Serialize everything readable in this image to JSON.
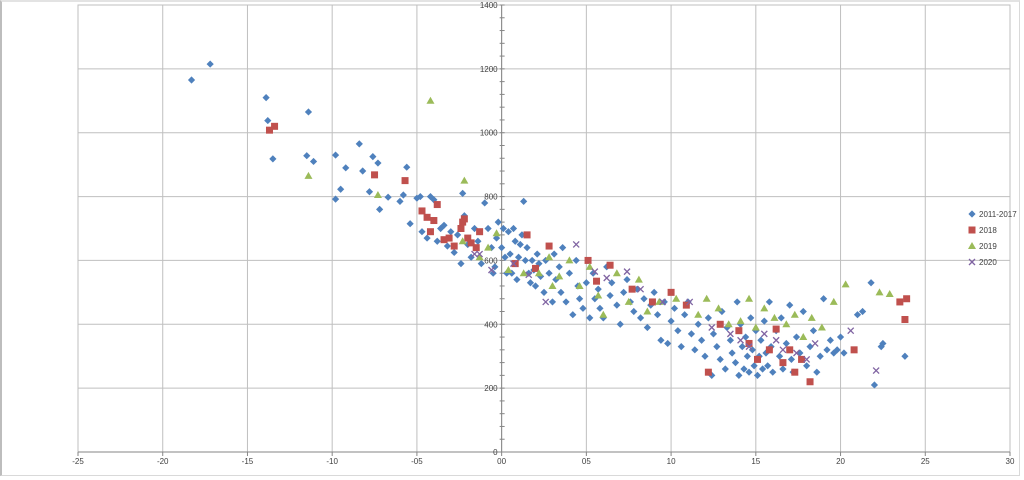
{
  "chart_data": {
    "type": "scatter",
    "title": "",
    "xlabel": "",
    "ylabel": "",
    "xlim": [
      -25,
      30
    ],
    "ylim": [
      0,
      1400
    ],
    "grid": true,
    "legend_position": "right",
    "x_tick_labels": [
      "-25",
      "-20",
      "-15",
      "-10",
      "-05",
      "00",
      "05",
      "10",
      "15",
      "20",
      "25",
      "30"
    ],
    "x_ticks": [
      -25,
      -20,
      -15,
      -10,
      -5,
      0,
      5,
      10,
      15,
      20,
      25,
      30
    ],
    "y_tick_labels": [
      "0",
      "200",
      "400",
      "600",
      "800",
      "1000",
      "1200",
      "1400"
    ],
    "y_ticks": [
      0,
      200,
      400,
      600,
      800,
      1000,
      1200,
      1400
    ],
    "series": [
      {
        "name": "2011-2017",
        "marker": "diamond",
        "color": "#4f81bd",
        "points": [
          [
            -18.3,
            1165
          ],
          [
            -17.2,
            1215
          ],
          [
            -13.9,
            1110
          ],
          [
            -13.8,
            1038
          ],
          [
            -13.5,
            918
          ],
          [
            -11.4,
            1065
          ],
          [
            -11.5,
            928
          ],
          [
            -11.1,
            910
          ],
          [
            -9.8,
            930
          ],
          [
            -9.8,
            792
          ],
          [
            -9.5,
            823
          ],
          [
            -9.2,
            890
          ],
          [
            -8.4,
            965
          ],
          [
            -8.2,
            880
          ],
          [
            -7.8,
            815
          ],
          [
            -7.6,
            925
          ],
          [
            -7.3,
            905
          ],
          [
            -7.2,
            760
          ],
          [
            -6.7,
            798
          ],
          [
            -6.0,
            785
          ],
          [
            -5.8,
            805
          ],
          [
            -5.6,
            892
          ],
          [
            -5.4,
            715
          ],
          [
            -5.0,
            795
          ],
          [
            -4.8,
            800
          ],
          [
            -4.7,
            690
          ],
          [
            -4.4,
            670
          ],
          [
            -4.2,
            800
          ],
          [
            -4.0,
            790
          ],
          [
            -3.8,
            660
          ],
          [
            -3.6,
            700
          ],
          [
            -3.4,
            710
          ],
          [
            -3.2,
            645
          ],
          [
            -3.0,
            690
          ],
          [
            -2.8,
            625
          ],
          [
            -2.6,
            680
          ],
          [
            -2.4,
            590
          ],
          [
            -2.3,
            810
          ],
          [
            -2.2,
            740
          ],
          [
            -2.0,
            650
          ],
          [
            -1.8,
            610
          ],
          [
            -1.6,
            700
          ],
          [
            -1.4,
            660
          ],
          [
            -1.2,
            590
          ],
          [
            -1.0,
            780
          ],
          [
            -0.8,
            700
          ],
          [
            -0.6,
            640
          ],
          [
            -0.5,
            560
          ],
          [
            -0.4,
            580
          ],
          [
            -0.3,
            670
          ],
          [
            -0.2,
            720
          ],
          [
            0.0,
            640
          ],
          [
            0.1,
            700
          ],
          [
            0.2,
            610
          ],
          [
            0.3,
            560
          ],
          [
            0.4,
            690
          ],
          [
            0.5,
            620
          ],
          [
            0.6,
            560
          ],
          [
            0.7,
            700
          ],
          [
            0.8,
            660
          ],
          [
            0.9,
            540
          ],
          [
            1.0,
            610
          ],
          [
            1.1,
            650
          ],
          [
            1.2,
            680
          ],
          [
            1.3,
            785
          ],
          [
            1.4,
            600
          ],
          [
            1.5,
            640
          ],
          [
            1.6,
            560
          ],
          [
            1.7,
            530
          ],
          [
            1.8,
            600
          ],
          [
            1.9,
            570
          ],
          [
            2.0,
            520
          ],
          [
            2.1,
            620
          ],
          [
            2.2,
            590
          ],
          [
            2.3,
            550
          ],
          [
            2.5,
            500
          ],
          [
            2.6,
            600
          ],
          [
            2.8,
            560
          ],
          [
            3.0,
            470
          ],
          [
            3.1,
            620
          ],
          [
            3.2,
            540
          ],
          [
            3.4,
            580
          ],
          [
            3.5,
            500
          ],
          [
            3.6,
            640
          ],
          [
            3.8,
            470
          ],
          [
            4.0,
            560
          ],
          [
            4.2,
            430
          ],
          [
            4.4,
            600
          ],
          [
            4.5,
            520
          ],
          [
            4.6,
            480
          ],
          [
            4.8,
            450
          ],
          [
            5.0,
            530
          ],
          [
            5.2,
            420
          ],
          [
            5.4,
            560
          ],
          [
            5.5,
            480
          ],
          [
            5.7,
            510
          ],
          [
            5.8,
            450
          ],
          [
            6.0,
            420
          ],
          [
            6.2,
            580
          ],
          [
            6.4,
            490
          ],
          [
            6.5,
            530
          ],
          [
            6.8,
            460
          ],
          [
            7.0,
            400
          ],
          [
            7.2,
            500
          ],
          [
            7.4,
            540
          ],
          [
            7.6,
            470
          ],
          [
            7.8,
            440
          ],
          [
            8.0,
            510
          ],
          [
            8.2,
            420
          ],
          [
            8.4,
            480
          ],
          [
            8.6,
            390
          ],
          [
            8.8,
            460
          ],
          [
            9.0,
            500
          ],
          [
            9.2,
            430
          ],
          [
            9.4,
            350
          ],
          [
            9.6,
            470
          ],
          [
            9.8,
            340
          ],
          [
            10.0,
            410
          ],
          [
            10.2,
            450
          ],
          [
            10.4,
            380
          ],
          [
            10.6,
            330
          ],
          [
            10.8,
            430
          ],
          [
            11.0,
            470
          ],
          [
            11.2,
            370
          ],
          [
            11.4,
            320
          ],
          [
            11.6,
            400
          ],
          [
            11.8,
            350
          ],
          [
            12.0,
            300
          ],
          [
            12.2,
            420
          ],
          [
            12.4,
            240
          ],
          [
            12.5,
            370
          ],
          [
            12.7,
            330
          ],
          [
            12.9,
            290
          ],
          [
            13.0,
            440
          ],
          [
            13.2,
            260
          ],
          [
            13.3,
            390
          ],
          [
            13.5,
            350
          ],
          [
            13.6,
            310
          ],
          [
            13.8,
            280
          ],
          [
            13.9,
            470
          ],
          [
            14.0,
            240
          ],
          [
            14.1,
            400
          ],
          [
            14.2,
            330
          ],
          [
            14.3,
            260
          ],
          [
            14.4,
            360
          ],
          [
            14.5,
            300
          ],
          [
            14.6,
            250
          ],
          [
            14.7,
            420
          ],
          [
            14.8,
            320
          ],
          [
            14.9,
            270
          ],
          [
            15.0,
            380
          ],
          [
            15.1,
            240
          ],
          [
            15.2,
            300
          ],
          [
            15.3,
            350
          ],
          [
            15.4,
            260
          ],
          [
            15.5,
            410
          ],
          [
            15.6,
            310
          ],
          [
            15.7,
            270
          ],
          [
            15.8,
            470
          ],
          [
            15.9,
            330
          ],
          [
            16.0,
            250
          ],
          [
            16.2,
            380
          ],
          [
            16.4,
            300
          ],
          [
            16.5,
            420
          ],
          [
            16.6,
            260
          ],
          [
            16.8,
            340
          ],
          [
            17.0,
            460
          ],
          [
            17.1,
            290
          ],
          [
            17.2,
            250
          ],
          [
            17.4,
            360
          ],
          [
            17.6,
            310
          ],
          [
            17.8,
            440
          ],
          [
            18.0,
            270
          ],
          [
            18.2,
            330
          ],
          [
            18.4,
            380
          ],
          [
            18.6,
            250
          ],
          [
            18.8,
            300
          ],
          [
            19.0,
            480
          ],
          [
            19.2,
            320
          ],
          [
            19.4,
            350
          ],
          [
            19.6,
            310
          ],
          [
            19.8,
            320
          ],
          [
            20.0,
            360
          ],
          [
            20.2,
            310
          ],
          [
            21.0,
            430
          ],
          [
            21.3,
            440
          ],
          [
            21.8,
            530
          ],
          [
            22.0,
            210
          ],
          [
            22.4,
            330
          ],
          [
            22.5,
            340
          ],
          [
            23.8,
            300
          ]
        ]
      },
      {
        "name": "2018",
        "marker": "square",
        "color": "#c0504d",
        "points": [
          [
            -13.7,
            1008
          ],
          [
            -13.4,
            1020
          ],
          [
            -7.5,
            868
          ],
          [
            -5.7,
            850
          ],
          [
            -4.7,
            755
          ],
          [
            -4.4,
            735
          ],
          [
            -4.2,
            690
          ],
          [
            -4.0,
            725
          ],
          [
            -3.8,
            775
          ],
          [
            -3.4,
            665
          ],
          [
            -3.1,
            670
          ],
          [
            -2.8,
            645
          ],
          [
            -2.4,
            700
          ],
          [
            -2.3,
            720
          ],
          [
            -2.2,
            730
          ],
          [
            -2.0,
            670
          ],
          [
            -1.8,
            655
          ],
          [
            -1.5,
            640
          ],
          [
            -1.3,
            690
          ],
          [
            0.8,
            590
          ],
          [
            1.5,
            680
          ],
          [
            2.0,
            575
          ],
          [
            2.8,
            645
          ],
          [
            5.1,
            600
          ],
          [
            5.6,
            535
          ],
          [
            6.4,
            585
          ],
          [
            7.7,
            510
          ],
          [
            8.9,
            470
          ],
          [
            10.0,
            500
          ],
          [
            10.9,
            460
          ],
          [
            12.2,
            250
          ],
          [
            12.9,
            400
          ],
          [
            14.0,
            380
          ],
          [
            14.6,
            340
          ],
          [
            15.1,
            290
          ],
          [
            15.8,
            320
          ],
          [
            16.2,
            385
          ],
          [
            16.6,
            280
          ],
          [
            17.0,
            320
          ],
          [
            17.3,
            250
          ],
          [
            17.7,
            290
          ],
          [
            18.2,
            220
          ],
          [
            20.8,
            320
          ],
          [
            23.5,
            470
          ],
          [
            23.8,
            415
          ],
          [
            23.9,
            480
          ]
        ]
      },
      {
        "name": "2019",
        "marker": "triangle",
        "color": "#9bbb59",
        "points": [
          [
            -11.4,
            865
          ],
          [
            -7.3,
            805
          ],
          [
            -4.2,
            1100
          ],
          [
            -2.2,
            850
          ],
          [
            -2.3,
            660
          ],
          [
            -1.3,
            610
          ],
          [
            -0.8,
            640
          ],
          [
            -0.3,
            685
          ],
          [
            0.4,
            570
          ],
          [
            1.3,
            560
          ],
          [
            2.2,
            560
          ],
          [
            2.8,
            610
          ],
          [
            3.0,
            520
          ],
          [
            3.4,
            550
          ],
          [
            4.0,
            600
          ],
          [
            4.6,
            520
          ],
          [
            5.2,
            580
          ],
          [
            5.7,
            490
          ],
          [
            6.0,
            430
          ],
          [
            6.8,
            560
          ],
          [
            7.5,
            470
          ],
          [
            8.1,
            540
          ],
          [
            8.6,
            440
          ],
          [
            9.3,
            470
          ],
          [
            10.3,
            480
          ],
          [
            11.6,
            430
          ],
          [
            12.1,
            480
          ],
          [
            12.8,
            450
          ],
          [
            13.4,
            400
          ],
          [
            14.1,
            410
          ],
          [
            14.6,
            480
          ],
          [
            15.0,
            390
          ],
          [
            15.5,
            450
          ],
          [
            16.1,
            420
          ],
          [
            16.8,
            400
          ],
          [
            17.3,
            430
          ],
          [
            17.8,
            360
          ],
          [
            18.3,
            420
          ],
          [
            18.9,
            390
          ],
          [
            19.6,
            470
          ],
          [
            20.3,
            525
          ],
          [
            22.3,
            500
          ],
          [
            22.9,
            495
          ]
        ]
      },
      {
        "name": "2020",
        "marker": "x",
        "color": "#8064a2",
        "points": [
          [
            -1.6,
            620
          ],
          [
            -1.3,
            620
          ],
          [
            -0.6,
            570
          ],
          [
            0.7,
            590
          ],
          [
            1.6,
            555
          ],
          [
            2.6,
            470
          ],
          [
            4.4,
            650
          ],
          [
            5.5,
            565
          ],
          [
            6.2,
            545
          ],
          [
            7.4,
            565
          ],
          [
            8.2,
            510
          ],
          [
            9.5,
            470
          ],
          [
            11.1,
            470
          ],
          [
            12.4,
            390
          ],
          [
            13.5,
            370
          ],
          [
            14.1,
            350
          ],
          [
            14.6,
            330
          ],
          [
            15.5,
            370
          ],
          [
            16.2,
            350
          ],
          [
            16.6,
            320
          ],
          [
            17.4,
            310
          ],
          [
            18.0,
            290
          ],
          [
            18.5,
            340
          ],
          [
            20.6,
            380
          ],
          [
            22.1,
            255
          ]
        ]
      }
    ]
  },
  "legend": {
    "items": [
      {
        "label": "2011-2017",
        "marker": "diamond",
        "color": "#4f81bd"
      },
      {
        "label": "2018",
        "marker": "square",
        "color": "#c0504d"
      },
      {
        "label": "2019",
        "marker": "triangle",
        "color": "#9bbb59"
      },
      {
        "label": "2020",
        "marker": "x",
        "color": "#8064a2"
      }
    ]
  },
  "colors": {
    "gridline": "#bfbfbf",
    "axis": "#868686",
    "plot_border": "#bfbfbf",
    "text": "#404040"
  }
}
